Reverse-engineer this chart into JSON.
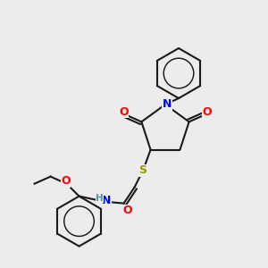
{
  "bg_color": "#ececec",
  "bond_color": "#1a1a1a",
  "bond_lw": 1.5,
  "atom_colors": {
    "O": "#ff0000",
    "N": "#0000ff",
    "S": "#999900",
    "H": "#4a9a9a",
    "C": "#1a1a1a"
  },
  "font_size_atom": 9,
  "font_size_small": 7.5
}
